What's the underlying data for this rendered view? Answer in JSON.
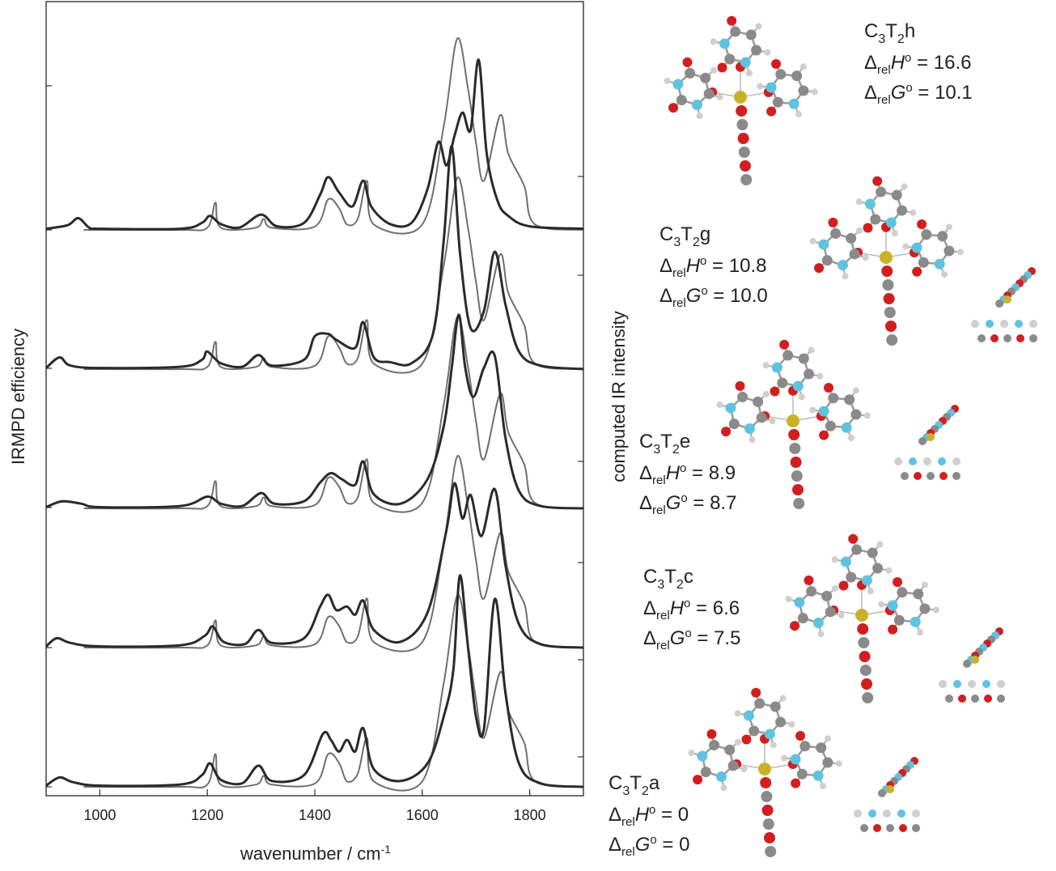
{
  "chart_data": {
    "type": "line",
    "title": "",
    "xlabel": "wavenumber / cm",
    "xlabel_superscript": "-1",
    "ylabel_left": "IRMPD efficiency",
    "ylabel_right": "computed IR intensity",
    "xlim": [
      900,
      1900
    ],
    "xticks": [
      1000,
      1200,
      1400,
      1600,
      1800
    ],
    "xtick_labels": [
      "1000",
      "1200",
      "1400",
      "1600",
      "1800"
    ],
    "grid": false,
    "legend": "none",
    "colors": {
      "experimental": "#2a2a2a",
      "computed": "#6f6f6f"
    },
    "panels": [
      {
        "conformer": "C3T2h",
        "label_main": "C",
        "label_sub1": "3",
        "label_mid": "T",
        "label_sub2": "2",
        "label_tail": "h",
        "dH": "16.6",
        "dG": "10.1",
        "experimental": [
          [
            900,
            0.01
          ],
          [
            940,
            0.04
          ],
          [
            960,
            0.1
          ],
          [
            980,
            0.02
          ],
          [
            1000,
            0.01
          ],
          [
            1150,
            0.01
          ],
          [
            1190,
            0.06
          ],
          [
            1205,
            0.12
          ],
          [
            1225,
            0.05
          ],
          [
            1260,
            0.02
          ],
          [
            1300,
            0.13
          ],
          [
            1330,
            0.03
          ],
          [
            1380,
            0.06
          ],
          [
            1410,
            0.3
          ],
          [
            1425,
            0.45
          ],
          [
            1445,
            0.32
          ],
          [
            1470,
            0.2
          ],
          [
            1490,
            0.42
          ],
          [
            1505,
            0.2
          ],
          [
            1540,
            0.05
          ],
          [
            1580,
            0.06
          ],
          [
            1610,
            0.35
          ],
          [
            1630,
            0.75
          ],
          [
            1645,
            0.55
          ],
          [
            1660,
            0.8
          ],
          [
            1675,
            1.0
          ],
          [
            1690,
            0.85
          ],
          [
            1705,
            1.45
          ],
          [
            1720,
            0.65
          ],
          [
            1740,
            0.25
          ],
          [
            1760,
            0.12
          ],
          [
            1800,
            0.03
          ],
          [
            1900,
            0.01
          ]
        ],
        "computed": [
          [
            970,
            0.0
          ],
          [
            1150,
            0.0
          ],
          [
            1200,
            0.02
          ],
          [
            1215,
            0.25
          ],
          [
            1225,
            0.02
          ],
          [
            1290,
            0.02
          ],
          [
            1305,
            0.1
          ],
          [
            1320,
            0.02
          ],
          [
            1400,
            0.03
          ],
          [
            1425,
            0.28
          ],
          [
            1445,
            0.2
          ],
          [
            1460,
            0.05
          ],
          [
            1480,
            0.1
          ],
          [
            1497,
            0.45
          ],
          [
            1510,
            0.05
          ],
          [
            1600,
            0.05
          ],
          [
            1640,
            0.95
          ],
          [
            1665,
            1.75
          ],
          [
            1685,
            1.3
          ],
          [
            1700,
            0.8
          ],
          [
            1715,
            0.45
          ],
          [
            1745,
            1.05
          ],
          [
            1760,
            0.7
          ],
          [
            1790,
            0.4
          ],
          [
            1810,
            0.05
          ],
          [
            1900,
            0.0
          ]
        ]
      },
      {
        "conformer": "C3T2g",
        "label_main": "C",
        "label_sub1": "3",
        "label_mid": "T",
        "label_sub2": "2",
        "label_tail": "g",
        "dH": "10.8",
        "dG": "10.0",
        "experimental": [
          [
            900,
            0.01
          ],
          [
            925,
            0.1
          ],
          [
            945,
            0.03
          ],
          [
            1000,
            0.01
          ],
          [
            1150,
            0.02
          ],
          [
            1190,
            0.08
          ],
          [
            1200,
            0.15
          ],
          [
            1225,
            0.05
          ],
          [
            1265,
            0.02
          ],
          [
            1295,
            0.12
          ],
          [
            1320,
            0.03
          ],
          [
            1380,
            0.08
          ],
          [
            1400,
            0.28
          ],
          [
            1425,
            0.3
          ],
          [
            1440,
            0.25
          ],
          [
            1475,
            0.18
          ],
          [
            1490,
            0.4
          ],
          [
            1510,
            0.1
          ],
          [
            1540,
            0.06
          ],
          [
            1580,
            0.05
          ],
          [
            1620,
            0.3
          ],
          [
            1640,
            1.1
          ],
          [
            1655,
            1.9
          ],
          [
            1670,
            1.0
          ],
          [
            1690,
            0.35
          ],
          [
            1715,
            0.5
          ],
          [
            1735,
            1.0
          ],
          [
            1755,
            0.55
          ],
          [
            1780,
            0.15
          ],
          [
            1820,
            0.03
          ],
          [
            1900,
            0.0
          ]
        ],
        "computed": [
          [
            970,
            0.0
          ],
          [
            1150,
            0.0
          ],
          [
            1200,
            0.02
          ],
          [
            1215,
            0.25
          ],
          [
            1225,
            0.02
          ],
          [
            1290,
            0.02
          ],
          [
            1305,
            0.1
          ],
          [
            1320,
            0.02
          ],
          [
            1400,
            0.03
          ],
          [
            1425,
            0.3
          ],
          [
            1445,
            0.2
          ],
          [
            1460,
            0.05
          ],
          [
            1480,
            0.1
          ],
          [
            1497,
            0.45
          ],
          [
            1510,
            0.05
          ],
          [
            1600,
            0.05
          ],
          [
            1640,
            0.95
          ],
          [
            1665,
            1.75
          ],
          [
            1685,
            1.3
          ],
          [
            1700,
            0.8
          ],
          [
            1715,
            0.45
          ],
          [
            1745,
            1.05
          ],
          [
            1760,
            0.7
          ],
          [
            1790,
            0.4
          ],
          [
            1810,
            0.05
          ],
          [
            1900,
            0.0
          ]
        ]
      },
      {
        "conformer": "C3T2e",
        "label_main": "C",
        "label_sub1": "3",
        "label_mid": "T",
        "label_sub2": "2",
        "label_tail": "e",
        "dH": "8.9",
        "dG": "8.7",
        "experimental": [
          [
            900,
            0.01
          ],
          [
            930,
            0.06
          ],
          [
            965,
            0.04
          ],
          [
            1000,
            0.01
          ],
          [
            1150,
            0.02
          ],
          [
            1200,
            0.1
          ],
          [
            1225,
            0.04
          ],
          [
            1265,
            0.02
          ],
          [
            1300,
            0.13
          ],
          [
            1325,
            0.04
          ],
          [
            1380,
            0.06
          ],
          [
            1410,
            0.22
          ],
          [
            1430,
            0.3
          ],
          [
            1450,
            0.25
          ],
          [
            1475,
            0.2
          ],
          [
            1490,
            0.4
          ],
          [
            1510,
            0.12
          ],
          [
            1560,
            0.04
          ],
          [
            1610,
            0.25
          ],
          [
            1640,
            0.7
          ],
          [
            1655,
            1.2
          ],
          [
            1668,
            1.65
          ],
          [
            1680,
            1.2
          ],
          [
            1695,
            0.95
          ],
          [
            1715,
            1.2
          ],
          [
            1735,
            1.3
          ],
          [
            1755,
            0.6
          ],
          [
            1780,
            0.15
          ],
          [
            1820,
            0.02
          ],
          [
            1900,
            0.0
          ]
        ],
        "computed": [
          [
            970,
            0.0
          ],
          [
            1150,
            0.0
          ],
          [
            1200,
            0.02
          ],
          [
            1215,
            0.25
          ],
          [
            1225,
            0.02
          ],
          [
            1290,
            0.02
          ],
          [
            1305,
            0.1
          ],
          [
            1320,
            0.02
          ],
          [
            1400,
            0.03
          ],
          [
            1425,
            0.28
          ],
          [
            1445,
            0.2
          ],
          [
            1460,
            0.05
          ],
          [
            1480,
            0.1
          ],
          [
            1497,
            0.45
          ],
          [
            1510,
            0.05
          ],
          [
            1600,
            0.05
          ],
          [
            1640,
            0.95
          ],
          [
            1665,
            1.75
          ],
          [
            1685,
            1.3
          ],
          [
            1700,
            0.8
          ],
          [
            1715,
            0.45
          ],
          [
            1745,
            1.05
          ],
          [
            1760,
            0.7
          ],
          [
            1790,
            0.4
          ],
          [
            1810,
            0.05
          ],
          [
            1900,
            0.0
          ]
        ]
      },
      {
        "conformer": "C3T2c",
        "label_main": "C",
        "label_sub1": "3",
        "label_mid": "T",
        "label_sub2": "2",
        "label_tail": "c",
        "dH": "6.6",
        "dG": "7.5",
        "experimental": [
          [
            900,
            0.01
          ],
          [
            920,
            0.08
          ],
          [
            945,
            0.04
          ],
          [
            1000,
            0.01
          ],
          [
            1150,
            0.02
          ],
          [
            1195,
            0.1
          ],
          [
            1210,
            0.18
          ],
          [
            1230,
            0.05
          ],
          [
            1270,
            0.03
          ],
          [
            1295,
            0.15
          ],
          [
            1320,
            0.04
          ],
          [
            1380,
            0.08
          ],
          [
            1410,
            0.35
          ],
          [
            1425,
            0.45
          ],
          [
            1440,
            0.32
          ],
          [
            1460,
            0.35
          ],
          [
            1475,
            0.28
          ],
          [
            1490,
            0.4
          ],
          [
            1510,
            0.15
          ],
          [
            1560,
            0.05
          ],
          [
            1610,
            0.3
          ],
          [
            1645,
            1.0
          ],
          [
            1660,
            1.4
          ],
          [
            1675,
            1.1
          ],
          [
            1690,
            1.3
          ],
          [
            1710,
            0.95
          ],
          [
            1735,
            1.35
          ],
          [
            1755,
            0.7
          ],
          [
            1780,
            0.2
          ],
          [
            1820,
            0.03
          ],
          [
            1900,
            0.0
          ]
        ],
        "computed": [
          [
            970,
            0.0
          ],
          [
            1150,
            0.0
          ],
          [
            1200,
            0.02
          ],
          [
            1215,
            0.25
          ],
          [
            1225,
            0.02
          ],
          [
            1290,
            0.02
          ],
          [
            1305,
            0.1
          ],
          [
            1320,
            0.02
          ],
          [
            1400,
            0.03
          ],
          [
            1425,
            0.28
          ],
          [
            1445,
            0.2
          ],
          [
            1460,
            0.05
          ],
          [
            1480,
            0.1
          ],
          [
            1497,
            0.45
          ],
          [
            1510,
            0.05
          ],
          [
            1600,
            0.05
          ],
          [
            1640,
            0.95
          ],
          [
            1665,
            1.75
          ],
          [
            1685,
            1.3
          ],
          [
            1700,
            0.8
          ],
          [
            1715,
            0.45
          ],
          [
            1745,
            1.05
          ],
          [
            1760,
            0.7
          ],
          [
            1790,
            0.4
          ],
          [
            1810,
            0.05
          ],
          [
            1900,
            0.0
          ]
        ]
      },
      {
        "conformer": "C3T2a",
        "label_main": "C",
        "label_sub1": "3",
        "label_mid": "T",
        "label_sub2": "2",
        "label_tail": "a",
        "dH": "0",
        "dG": "0",
        "experimental": [
          [
            900,
            0.01
          ],
          [
            925,
            0.08
          ],
          [
            950,
            0.04
          ],
          [
            1000,
            0.01
          ],
          [
            1150,
            0.02
          ],
          [
            1190,
            0.1
          ],
          [
            1205,
            0.2
          ],
          [
            1225,
            0.06
          ],
          [
            1265,
            0.03
          ],
          [
            1295,
            0.18
          ],
          [
            1320,
            0.05
          ],
          [
            1380,
            0.1
          ],
          [
            1415,
            0.45
          ],
          [
            1430,
            0.4
          ],
          [
            1445,
            0.3
          ],
          [
            1460,
            0.4
          ],
          [
            1475,
            0.3
          ],
          [
            1490,
            0.5
          ],
          [
            1510,
            0.15
          ],
          [
            1560,
            0.05
          ],
          [
            1610,
            0.2
          ],
          [
            1640,
            0.6
          ],
          [
            1658,
            1.0
          ],
          [
            1670,
            1.8
          ],
          [
            1685,
            1.2
          ],
          [
            1700,
            0.6
          ],
          [
            1715,
            0.5
          ],
          [
            1735,
            1.6
          ],
          [
            1755,
            0.8
          ],
          [
            1780,
            0.2
          ],
          [
            1820,
            0.03
          ],
          [
            1900,
            0.0
          ]
        ],
        "computed": [
          [
            970,
            0.0
          ],
          [
            1150,
            0.0
          ],
          [
            1200,
            0.02
          ],
          [
            1215,
            0.3
          ],
          [
            1225,
            0.02
          ],
          [
            1290,
            0.02
          ],
          [
            1305,
            0.1
          ],
          [
            1320,
            0.02
          ],
          [
            1400,
            0.03
          ],
          [
            1425,
            0.3
          ],
          [
            1445,
            0.22
          ],
          [
            1460,
            0.05
          ],
          [
            1480,
            0.12
          ],
          [
            1497,
            0.45
          ],
          [
            1510,
            0.05
          ],
          [
            1600,
            0.05
          ],
          [
            1640,
            0.95
          ],
          [
            1665,
            1.75
          ],
          [
            1685,
            1.3
          ],
          [
            1700,
            0.8
          ],
          [
            1715,
            0.45
          ],
          [
            1745,
            1.05
          ],
          [
            1760,
            0.7
          ],
          [
            1790,
            0.4
          ],
          [
            1810,
            0.05
          ],
          [
            1900,
            0.0
          ]
        ]
      }
    ]
  },
  "annotation_text": {
    "delta": "Δ",
    "rel": "rel",
    "H": "H",
    "G": "G",
    "degree": "o",
    "equals": " = "
  },
  "atom_colors": {
    "C": "#8a8a8a",
    "N": "#5fc3e0",
    "O": "#d11f1f",
    "H": "#cfcfcf",
    "metal": "#c9b227"
  }
}
